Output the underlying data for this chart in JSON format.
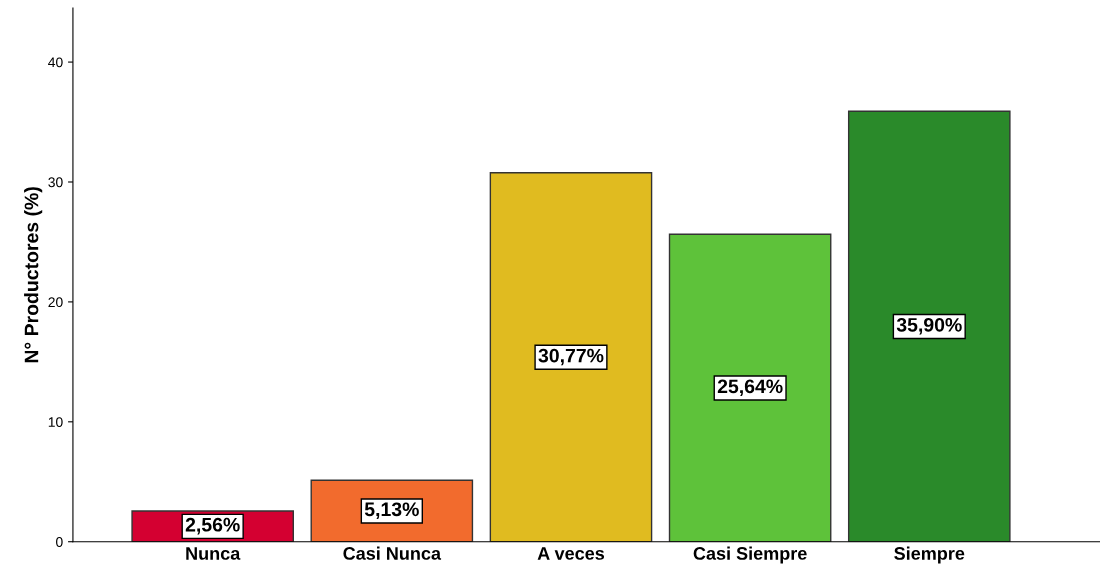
{
  "chart_data": {
    "type": "bar",
    "ylabel": "N° Productores (%)",
    "categories": [
      "Nunca",
      "Casi Nunca",
      "A veces",
      "Casi Siempre",
      "Siempre"
    ],
    "values": [
      2.56,
      5.13,
      30.77,
      25.64,
      35.9
    ],
    "colors": [
      "#d40031",
      "#f26b2d",
      "#e0bb20",
      "#5ec23a",
      "#2a8a2a"
    ],
    "value_labels": [
      "2,56%",
      "5,13%",
      "30,77%",
      "25,64%",
      "35,90%"
    ],
    "ylim": [
      0,
      44.5
    ],
    "yticks": [
      0,
      10,
      20,
      30,
      40
    ],
    "grid": false,
    "legend": false
  }
}
